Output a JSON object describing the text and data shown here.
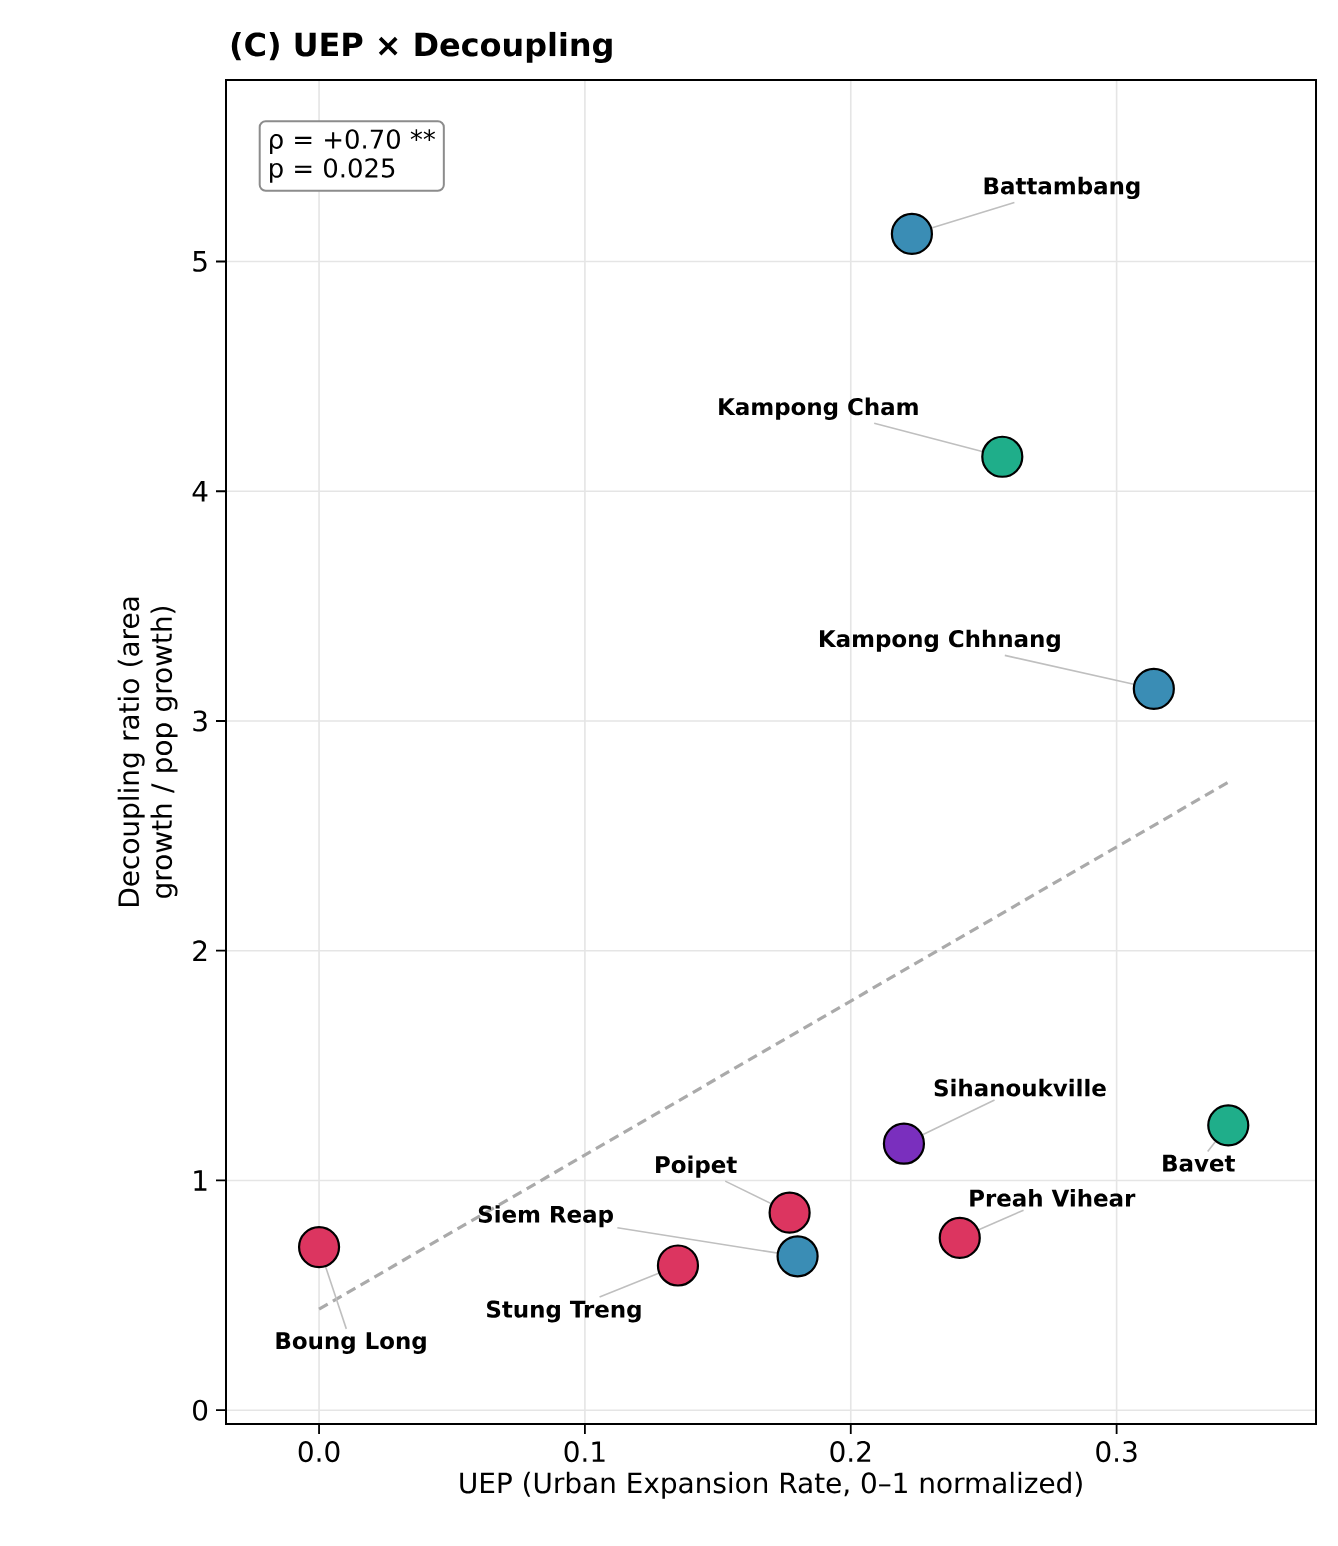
{
  "chart_data": {
    "type": "scatter",
    "title": "(C) UEP × Decoupling",
    "xlabel": "UEP (Urban Expansion Rate, 0–1 normalized)",
    "ylabel": "Decoupling ratio (area growth / pop growth)",
    "xlim": [
      -0.035,
      0.375
    ],
    "ylim": [
      -0.06,
      5.79
    ],
    "xticks": [
      {
        "value": 0,
        "label": "0.0"
      },
      {
        "value": 0.1,
        "label": "0.1"
      },
      {
        "value": 0.2,
        "label": "0.2"
      },
      {
        "value": 0.3,
        "label": "0.3"
      }
    ],
    "yticks": [
      0,
      1,
      2,
      3,
      4,
      5
    ],
    "grid": true,
    "series": [
      {
        "type": "scatter",
        "marker": "circle",
        "x": [
          0.223,
          0.257,
          0.314,
          0.22,
          0.342,
          0.177,
          0.241,
          0.18,
          0.135,
          0.0
        ],
        "values": [
          5.12,
          4.15,
          3.14,
          1.16,
          1.24,
          0.86,
          0.75,
          0.67,
          0.63,
          0.71
        ],
        "colors": [
          "#3a8db5",
          "#1fae8a",
          "#3a8db5",
          "#7a2fbe",
          "#1fae8a",
          "#dc3560",
          "#dc3560",
          "#3a8db5",
          "#dc3560",
          "#dc3560"
        ]
      },
      {
        "type": "line",
        "x": [
          0.0,
          0.343
        ],
        "values": [
          0.44,
          2.74
        ],
        "color": "#aaaaaa",
        "line_style": "dashed"
      }
    ],
    "annotations": [
      "ρ = +0.70 **",
      "p = 0.025",
      {
        "text": "Battambang",
        "x": 0.223,
        "y": 5.12
      },
      {
        "text": "Kampong Cham",
        "x": 0.257,
        "y": 4.15
      },
      {
        "text": "Kampong Chhnang",
        "x": 0.314,
        "y": 3.14
      },
      {
        "text": "Sihanoukville",
        "x": 0.22,
        "y": 1.16
      },
      {
        "text": "Bavet",
        "x": 0.342,
        "y": 1.24
      },
      {
        "text": "Poipet",
        "x": 0.177,
        "y": 0.86
      },
      {
        "text": "Preah Vihear",
        "x": 0.241,
        "y": 0.75
      },
      {
        "text": "Siem Reap",
        "x": 0.18,
        "y": 0.67
      },
      {
        "text": "Stung Treng",
        "x": 0.135,
        "y": 0.63
      },
      {
        "text": "Boung Long",
        "x": 0.0,
        "y": 0.71
      }
    ]
  }
}
